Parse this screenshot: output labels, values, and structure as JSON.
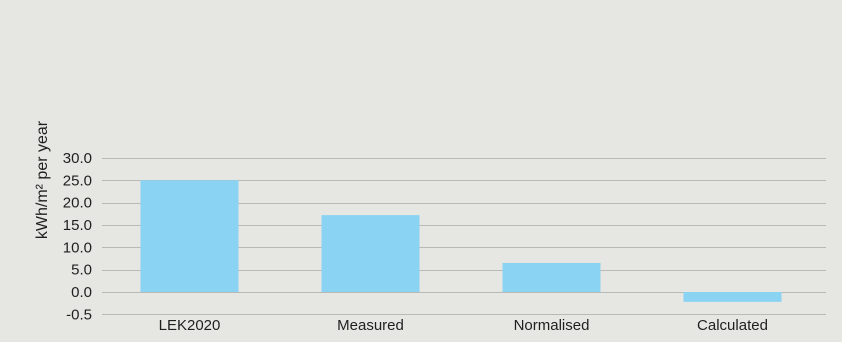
{
  "chart_data": {
    "type": "bar",
    "categories": [
      "LEK2020",
      "Measured",
      "Normalised",
      "Calculated"
    ],
    "values": [
      25.0,
      17.2,
      6.5,
      -2.2
    ],
    "ylabel": "kWh/m² per year",
    "yticks": [
      "30.0",
      "25.0",
      "20.0",
      "15.0",
      "10.0",
      "5.0",
      "0.0",
      "-0.5"
    ],
    "ylim": [
      -5.0,
      30.0
    ],
    "grid": true,
    "legend": "none",
    "bar_color": "#8ad3f2",
    "background_color": "#e6e6e2"
  }
}
